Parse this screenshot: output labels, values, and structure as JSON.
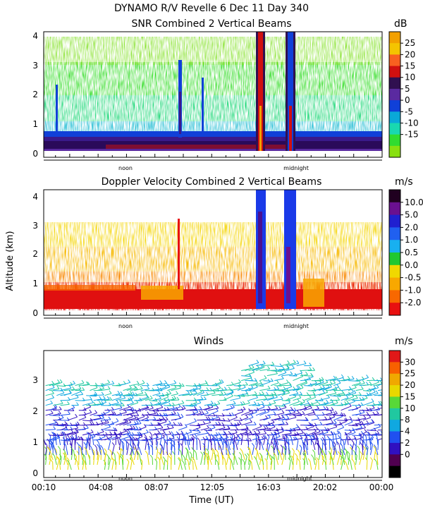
{
  "header": {
    "line1": "DYNAMO R/V Revelle    6 Dec 11 Day 340"
  },
  "y_axis_label": "Altitude (km)",
  "x_axis_label": "Time (UT)",
  "marker_labels": [
    "noon",
    "midnight"
  ],
  "chart_data": [
    {
      "type": "heatmap",
      "title": "SNR Combined 2 Vertical Beams",
      "colorbar_unit": "dB",
      "colorbar_ticks": [
        "25",
        "20",
        "15",
        "10",
        "5",
        "0",
        "-5",
        "-10",
        "-15"
      ],
      "colorbar_colors": [
        "#f2a000",
        "#f4c400",
        "#f86020",
        "#d01010",
        "#301050",
        "#5a2aa0",
        "#1040d8",
        "#0aa8d8",
        "#19d8b0",
        "#30dc30",
        "#88e010"
      ],
      "y_ticks": [
        "0",
        "1",
        "2",
        "3",
        "4"
      ],
      "ylim": [
        0,
        4.3
      ],
      "xlim_hours": [
        0.17,
        24
      ],
      "features": {
        "surface_layer_top_km": 0.8,
        "cloud_echo_top_km": 3.2,
        "rain_columns_hours": [
          14.6,
          16.5
        ]
      }
    },
    {
      "type": "heatmap",
      "title": "Doppler Velocity Combined 2 Vertical Beams",
      "colorbar_unit": "m/s",
      "colorbar_ticks": [
        "10.0",
        "5.0",
        "2.0",
        "1.0",
        "0.5",
        "0.0",
        "-0.5",
        "-1.0",
        "-2.0"
      ],
      "colorbar_colors": [
        "#200020",
        "#6a1090",
        "#2020d0",
        "#2060f0",
        "#18b0f0",
        "#20c830",
        "#f0d800",
        "#f8a800",
        "#f86800",
        "#e81010"
      ],
      "y_ticks": [
        "0",
        "1",
        "2",
        "3",
        "4"
      ],
      "ylim": [
        0,
        4.3
      ],
      "xlim_hours": [
        0.17,
        24
      ],
      "features": {
        "surface_layer_top_km": 0.9,
        "echo_top_km": 3.3,
        "rain_columns_hours": [
          14.6,
          16.5
        ]
      }
    },
    {
      "type": "scatter",
      "title": "Winds",
      "colorbar_unit": "m/s",
      "colorbar_ticks": [
        "30",
        "25",
        "20",
        "15",
        "10",
        "8",
        "4",
        "2",
        "0"
      ],
      "colorbar_colors": [
        "#e01818",
        "#f86000",
        "#f0a800",
        "#e8d800",
        "#58d838",
        "#20c8a0",
        "#10a8e0",
        "#2050f0",
        "#3010c0",
        "#500050",
        "#000000"
      ],
      "y_ticks": [
        "0",
        "1",
        "2",
        "3"
      ],
      "ylim": [
        -0.1,
        4.0
      ],
      "xlim_hours": [
        0.17,
        24
      ],
      "x_ticks": [
        "00:10",
        "04:08",
        "08:07",
        "12:05",
        "16:03",
        "20:02",
        "00:00"
      ],
      "x_tick_hours": [
        0.17,
        4.13,
        8.12,
        12.08,
        16.05,
        20.03,
        24.0
      ]
    }
  ]
}
